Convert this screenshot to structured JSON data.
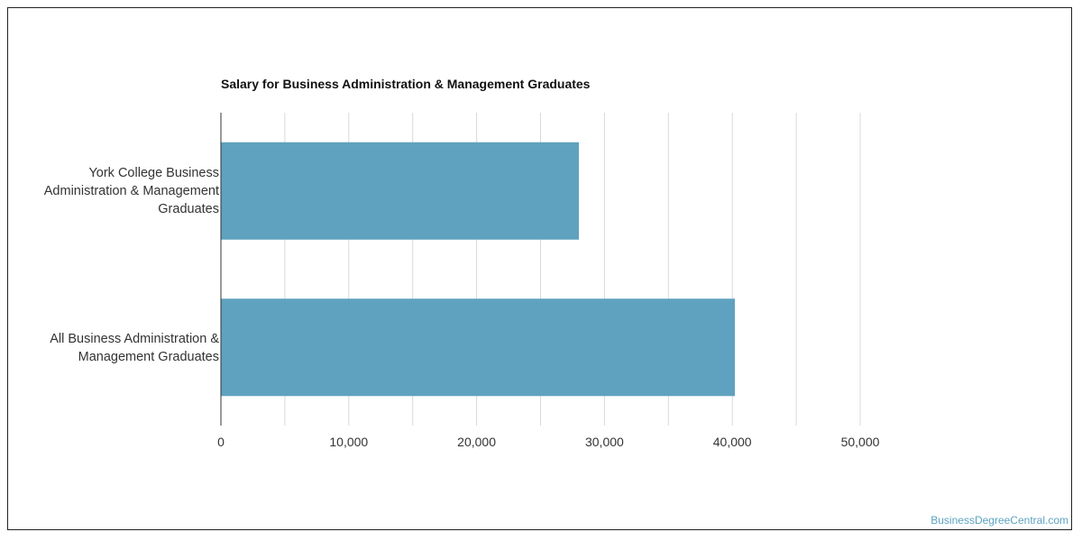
{
  "chart_data": {
    "type": "bar",
    "orientation": "horizontal",
    "title": "Salary for Business Administration & Management Graduates",
    "categories": [
      "York College Business Administration & Management Graduates",
      "All Business Administration & Management Graduates"
    ],
    "category_lines": [
      [
        "York College Business",
        "Administration & Management",
        "Graduates"
      ],
      [
        "All Business Administration &",
        "Management Graduates"
      ]
    ],
    "values": [
      28000,
      40200
    ],
    "xlim": [
      0,
      50000
    ],
    "xticks": [
      "0",
      "10,000",
      "20,000",
      "30,000",
      "40,000",
      "50,000"
    ],
    "xtick_values": [
      0,
      10000,
      20000,
      30000,
      40000,
      50000
    ],
    "grid": true,
    "bar_color": "#5fa2bf",
    "grid_color": "#d9d9d9"
  },
  "watermark": "BusinessDegreeCentral.com"
}
